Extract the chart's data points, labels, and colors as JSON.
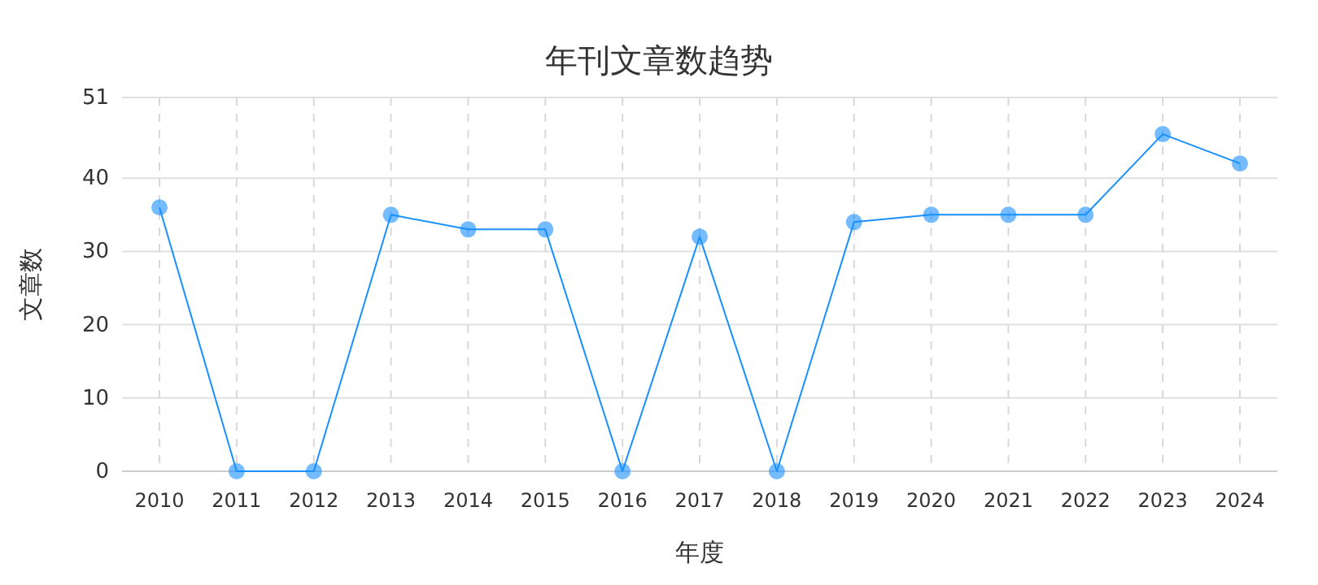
{
  "chart_data": {
    "type": "line",
    "title": "年刊文章数趋势",
    "xlabel": "年度",
    "ylabel": "文章数",
    "categories": [
      "2010",
      "2011",
      "2012",
      "2013",
      "2014",
      "2015",
      "2016",
      "2017",
      "2018",
      "2019",
      "2020",
      "2021",
      "2022",
      "2023",
      "2024"
    ],
    "series": [
      {
        "color": "#1890ff",
        "values": [
          36,
          0,
          0,
          35,
          33,
          33,
          0,
          32,
          0,
          34,
          35,
          35,
          35,
          46,
          42
        ]
      }
    ],
    "ylim": [
      0,
      51
    ],
    "yticks": [
      0,
      10,
      20,
      30,
      40,
      51
    ],
    "grid": true,
    "marker": "circle",
    "line_style": "solid"
  }
}
